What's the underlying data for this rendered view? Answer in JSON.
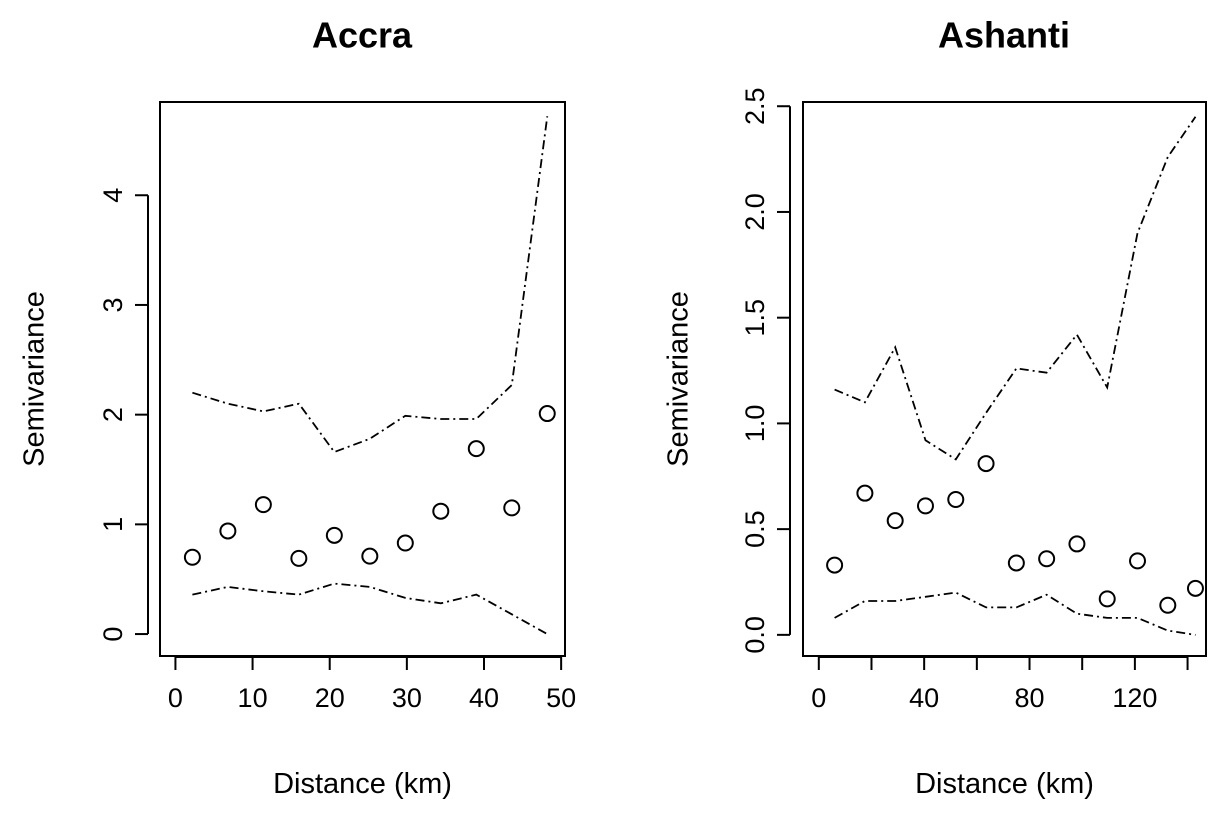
{
  "chart_data": [
    {
      "type": "scatter",
      "title": "Accra",
      "xlabel": "Distance (km)",
      "ylabel": "Semivariance",
      "xlim": [
        -2,
        50.5
      ],
      "ylim": [
        -0.2,
        4.85
      ],
      "xticks": [
        0,
        10,
        20,
        30,
        40,
        50
      ],
      "yticks": [
        0,
        1,
        2,
        3,
        4
      ],
      "grid": false,
      "legend": "none",
      "series": [
        {
          "style": "points",
          "x": [
            2.2,
            6.8,
            11.4,
            16.0,
            20.6,
            25.2,
            29.8,
            34.4,
            39.0,
            43.6,
            48.2
          ],
          "y": [
            0.7,
            0.94,
            1.18,
            0.69,
            0.9,
            0.71,
            0.83,
            1.12,
            1.69,
            1.15,
            2.01
          ]
        },
        {
          "style": "dashdot",
          "x": [
            2.2,
            6.8,
            11.4,
            16.0,
            20.6,
            25.2,
            29.8,
            34.4,
            39.0,
            43.6,
            48.2
          ],
          "y": [
            2.2,
            2.1,
            2.03,
            2.1,
            1.66,
            1.78,
            1.99,
            1.96,
            1.96,
            2.27,
            4.72
          ]
        },
        {
          "style": "dashdot",
          "x": [
            2.2,
            6.8,
            11.4,
            16.0,
            20.6,
            25.2,
            29.8,
            34.4,
            39.0,
            43.6,
            48.2
          ],
          "y": [
            0.36,
            0.43,
            0.39,
            0.36,
            0.46,
            0.43,
            0.33,
            0.28,
            0.36,
            0.18,
            0.0
          ]
        }
      ]
    },
    {
      "type": "scatter",
      "title": "Ashanti",
      "xlabel": "Distance (km)",
      "ylabel": "Semivariance",
      "xlim": [
        -6,
        147
      ],
      "ylim": [
        -0.1,
        2.52
      ],
      "xticks": [
        0,
        20,
        40,
        60,
        80,
        100,
        120,
        140
      ],
      "xticklabels": [
        "0",
        "",
        "40",
        "",
        "80",
        "",
        "120",
        ""
      ],
      "yticks": [
        0.0,
        0.5,
        1.0,
        1.5,
        2.0,
        2.5
      ],
      "yticklabels": [
        "0.0",
        "0.5",
        "1.0",
        "1.5",
        "2.0",
        "2.5"
      ],
      "grid": false,
      "legend": "none",
      "series": [
        {
          "style": "points",
          "x": [
            6,
            17.5,
            29,
            40.5,
            52,
            63.5,
            75,
            86.5,
            98,
            109.5,
            121,
            132.5,
            143
          ],
          "y": [
            0.33,
            0.67,
            0.54,
            0.61,
            0.64,
            0.81,
            0.34,
            0.36,
            0.43,
            0.17,
            0.35,
            0.14,
            0.22
          ]
        },
        {
          "style": "dashdot",
          "x": [
            6,
            17.5,
            29,
            40.5,
            52,
            63.5,
            75,
            86.5,
            98,
            109.5,
            121,
            132.5,
            143
          ],
          "y": [
            1.16,
            1.1,
            1.36,
            0.92,
            0.83,
            1.05,
            1.26,
            1.24,
            1.42,
            1.17,
            1.9,
            2.26,
            2.45
          ]
        },
        {
          "style": "dashdot",
          "x": [
            6,
            17.5,
            29,
            40.5,
            52,
            63.5,
            75,
            86.5,
            98,
            109.5,
            121,
            132.5,
            143
          ],
          "y": [
            0.08,
            0.16,
            0.16,
            0.18,
            0.2,
            0.13,
            0.13,
            0.19,
            0.1,
            0.08,
            0.08,
            0.02,
            0.0
          ]
        }
      ]
    }
  ]
}
